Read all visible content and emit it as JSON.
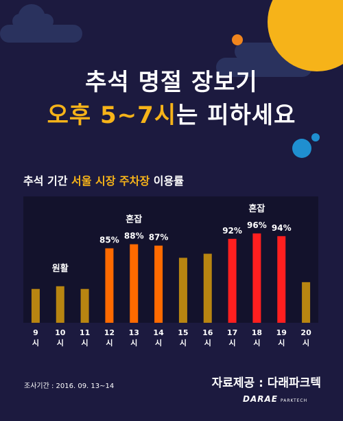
{
  "headline": {
    "line1": "추석 명절 장보기",
    "line2_accent": "오후 5~7시",
    "line2_rest": "는 피하세요"
  },
  "subtitle": {
    "part1": "추석 기간 ",
    "part2": "서울 시장 주차장",
    "part3": " 이용률"
  },
  "footer": {
    "survey_period": "조사기간 : 2016. 09. 13~14",
    "source": "자료제공 : 다래파크텍",
    "logo_text": "DARAE",
    "logo_sub": "PARKTECH"
  },
  "colors": {
    "background": "#1c1a3f",
    "plot_bg": "#13122c",
    "moon": "#f6b319",
    "smooth": "#b88511",
    "busy": "#ff6a00",
    "very_busy": "#ff1f1f",
    "accent_text": "#f6b319"
  },
  "chart_data": {
    "type": "bar",
    "title": "추석 기간 서울 시장 주차장 이용률",
    "categories": [
      "9\n시",
      "10\n시",
      "11\n시",
      "12\n시",
      "13\n시",
      "14\n시",
      "15\n시",
      "16\n시",
      "17\n시",
      "18\n시",
      "19\n시",
      "20\n시"
    ],
    "values": [
      55,
      57,
      55,
      85,
      88,
      87,
      78,
      81,
      92,
      96,
      94,
      60
    ],
    "value_labels": [
      "",
      "",
      "",
      "85%",
      "88%",
      "87%",
      "",
      "",
      "92%",
      "96%",
      "94%",
      ""
    ],
    "bar_groups": [
      "smooth",
      "smooth",
      "smooth",
      "busy",
      "busy",
      "busy",
      "smooth",
      "smooth",
      "very_busy",
      "very_busy",
      "very_busy",
      "smooth"
    ],
    "annotations": [
      {
        "text": "원활",
        "category_index": 1
      },
      {
        "text": "혼잡",
        "category_index": 4
      },
      {
        "text": "혼잡",
        "category_index": 9
      }
    ],
    "ylim": [
      30,
      100
    ],
    "grid": false,
    "xlabel": "",
    "ylabel": ""
  }
}
